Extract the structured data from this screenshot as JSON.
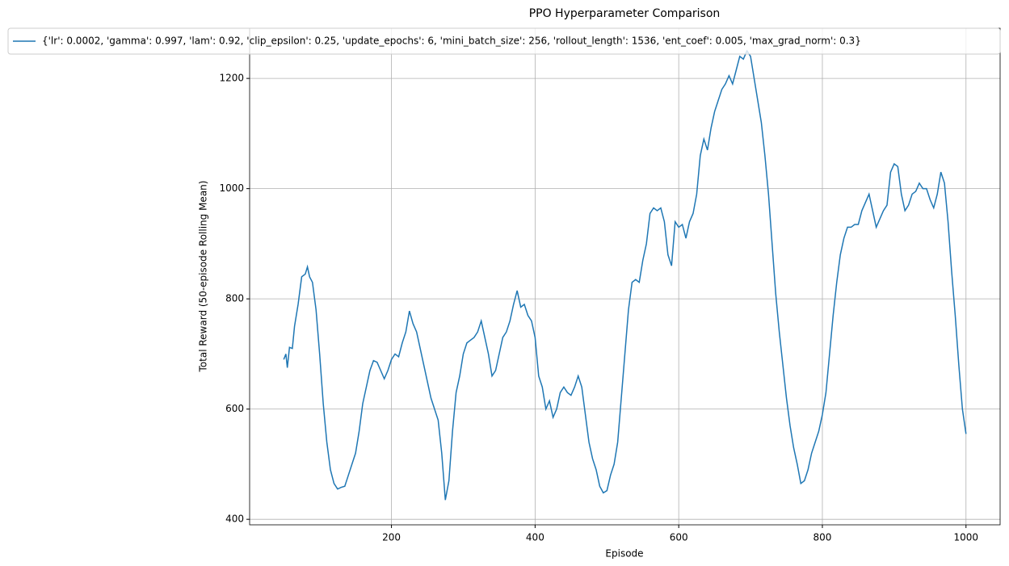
{
  "chart_data": {
    "type": "line",
    "title": "PPO Hyperparameter Comparison",
    "x_label": "Episode",
    "y_label": "Total Reward (50-episode Rolling Mean)",
    "grid": true,
    "legend": "upper left",
    "xlim": [
      2.5,
      1047.5
    ],
    "ylim": [
      390,
      1291
    ],
    "xticks": [
      200,
      400,
      600,
      800,
      1000
    ],
    "yticks": [
      400,
      600,
      800,
      1000,
      1200
    ],
    "x": [
      50,
      53,
      55,
      58,
      62,
      65,
      70,
      75,
      80,
      83,
      86,
      90,
      95,
      100,
      105,
      110,
      115,
      120,
      125,
      130,
      135,
      140,
      145,
      150,
      155,
      160,
      165,
      170,
      175,
      180,
      185,
      190,
      195,
      200,
      205,
      210,
      215,
      220,
      225,
      230,
      235,
      240,
      245,
      250,
      255,
      260,
      265,
      270,
      275,
      280,
      285,
      290,
      295,
      300,
      305,
      310,
      315,
      320,
      325,
      330,
      335,
      340,
      345,
      350,
      355,
      360,
      365,
      370,
      375,
      380,
      385,
      390,
      395,
      400,
      405,
      410,
      415,
      420,
      425,
      430,
      435,
      440,
      445,
      450,
      455,
      460,
      465,
      470,
      475,
      480,
      485,
      490,
      495,
      500,
      505,
      510,
      515,
      520,
      525,
      530,
      535,
      540,
      545,
      550,
      555,
      560,
      565,
      570,
      575,
      580,
      585,
      590,
      595,
      600,
      605,
      610,
      615,
      620,
      625,
      630,
      635,
      640,
      645,
      650,
      655,
      660,
      665,
      670,
      675,
      680,
      685,
      690,
      695,
      700,
      705,
      710,
      715,
      720,
      725,
      730,
      735,
      740,
      745,
      750,
      755,
      760,
      765,
      770,
      775,
      780,
      785,
      790,
      795,
      800,
      805,
      810,
      815,
      820,
      825,
      830,
      835,
      840,
      845,
      850,
      855,
      860,
      865,
      870,
      875,
      880,
      885,
      890,
      895,
      900,
      905,
      910,
      915,
      920,
      925,
      930,
      935,
      940,
      945,
      950,
      955,
      960,
      965,
      970,
      975,
      980,
      985,
      990,
      995,
      1000
    ],
    "series": [
      {
        "name": "{'lr': 0.0002, 'gamma': 0.997, 'lam': 0.92, 'clip_epsilon': 0.25, 'update_epochs': 6, 'mini_batch_size': 256, 'rollout_length': 1536, 'ent_coef': 0.005, 'max_grad_norm': 0.3}",
        "color": "#1f77b4",
        "values": [
          690,
          700,
          675,
          712,
          710,
          750,
          790,
          840,
          845,
          858,
          840,
          830,
          780,
          700,
          610,
          540,
          490,
          465,
          455,
          458,
          460,
          480,
          500,
          520,
          560,
          610,
          640,
          670,
          688,
          685,
          670,
          655,
          670,
          690,
          700,
          695,
          720,
          740,
          778,
          755,
          740,
          710,
          680,
          650,
          620,
          600,
          580,
          520,
          435,
          470,
          560,
          630,
          660,
          700,
          720,
          725,
          730,
          740,
          760,
          730,
          700,
          660,
          670,
          700,
          730,
          740,
          760,
          790,
          815,
          785,
          790,
          770,
          760,
          730,
          660,
          640,
          600,
          615,
          585,
          600,
          630,
          640,
          630,
          625,
          640,
          660,
          640,
          590,
          540,
          510,
          490,
          460,
          448,
          452,
          480,
          500,
          540,
          620,
          700,
          780,
          830,
          835,
          830,
          870,
          900,
          955,
          965,
          960,
          965,
          940,
          880,
          860,
          940,
          930,
          935,
          910,
          940,
          955,
          990,
          1060,
          1090,
          1070,
          1110,
          1140,
          1160,
          1180,
          1190,
          1205,
          1190,
          1215,
          1240,
          1235,
          1250,
          1240,
          1200,
          1160,
          1120,
          1060,
          990,
          900,
          810,
          740,
          680,
          620,
          570,
          530,
          500,
          465,
          470,
          490,
          520,
          540,
          560,
          590,
          630,
          700,
          770,
          830,
          880,
          910,
          930,
          930,
          935,
          935,
          960,
          975,
          990,
          960,
          930,
          945,
          960,
          970,
          1030,
          1045,
          1040,
          990,
          960,
          970,
          990,
          995,
          1010,
          1000,
          1000,
          980,
          965,
          990,
          1030,
          1010,
          940,
          850,
          770,
          680,
          600,
          555
        ]
      }
    ]
  }
}
